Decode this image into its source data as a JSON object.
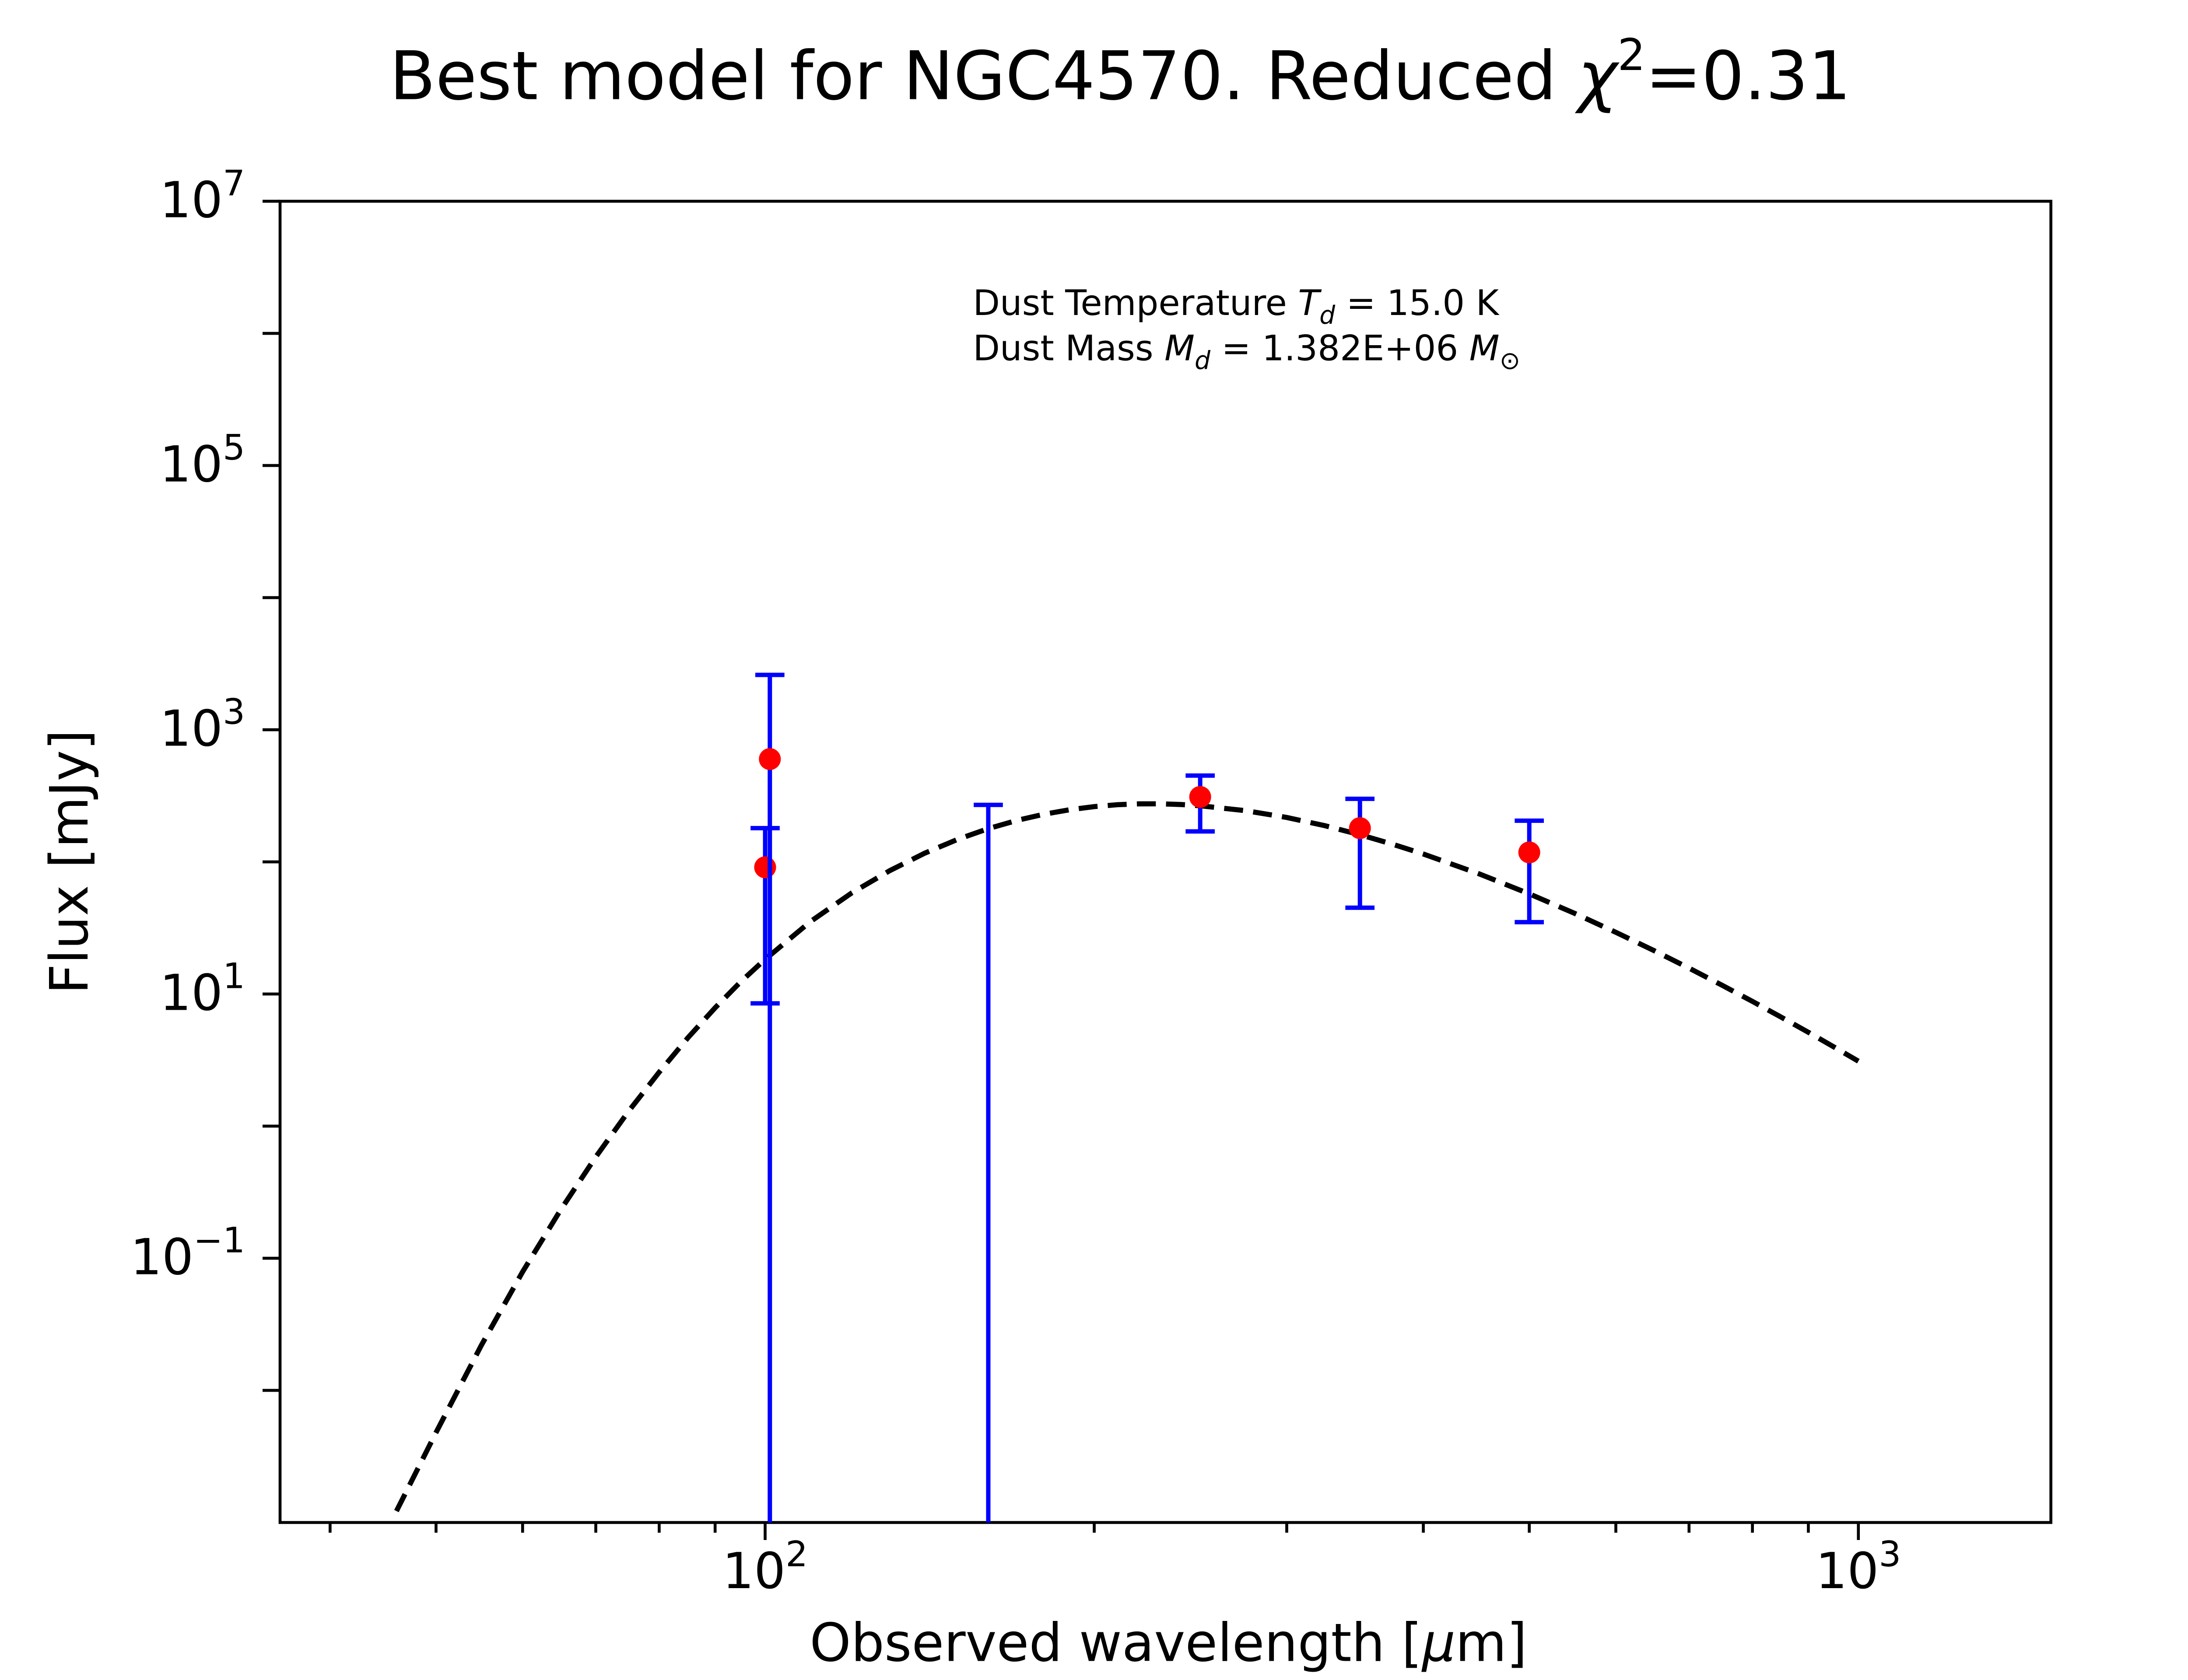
{
  "chart_data": {
    "type": "scatter",
    "title": {
      "main": "Best model for NGC4570. Reduced ",
      "chi": "χ",
      "sup": "2",
      "value": "=0.31"
    },
    "xlabel": {
      "main": "Observed wavelength [",
      "mu": "μ",
      "unit": "m]"
    },
    "ylabel": "Flux [mJy]",
    "xscale": "log",
    "yscale": "log",
    "xlim": [
      36,
      1500
    ],
    "ylim": [
      0.001,
      10000000
    ],
    "x_ticks": [
      {
        "value": 100,
        "base": "10",
        "exp": "2"
      },
      {
        "value": 1000,
        "base": "10",
        "exp": "3"
      }
    ],
    "y_ticks": [
      {
        "value": 0.1,
        "base": "10",
        "exp": "−1"
      },
      {
        "value": 10,
        "base": "10",
        "exp": "1"
      },
      {
        "value": 1000,
        "base": "10",
        "exp": "3"
      },
      {
        "value": 100000,
        "base": "10",
        "exp": "5"
      },
      {
        "value": 10000000,
        "base": "10",
        "exp": "7"
      }
    ],
    "grid": false,
    "annotation": {
      "line1_prefix": "Dust Temperature ",
      "line1_sym": "T",
      "line1_sub": "d",
      "line1_suffix": " = 15.0 K",
      "line2_prefix": "Dust Mass ",
      "line2_sym": "M",
      "line2_sub": "d",
      "line2_mid": " = 1.382E+06 ",
      "line2_sym2": "M",
      "line2_sub2": "⊙"
    },
    "model_curve": {
      "style": "dashed",
      "color": "#000000",
      "x": [
        46,
        50,
        55,
        60,
        65,
        70,
        75,
        80,
        85,
        90,
        95,
        100,
        110,
        120,
        130,
        140,
        150,
        160,
        170,
        180,
        190,
        200,
        210,
        220,
        230,
        240,
        250,
        275,
        300,
        325,
        350,
        375,
        400,
        450,
        500,
        550,
        600,
        650,
        700,
        750,
        800,
        850,
        900,
        950,
        1000
      ],
      "y": [
        0.00122,
        0.0048,
        0.0219,
        0.0789,
        0.232,
        0.585,
        1.295,
        2.56,
        4.67,
        7.86,
        12.4,
        18.3,
        35.3,
        58.2,
        85.8,
        116.5,
        148.0,
        178.5,
        206.1,
        229.6,
        248.3,
        262.0,
        270.8,
        274.9,
        275.0,
        271.8,
        265.9,
        244.2,
        216.8,
        188.0,
        160.6,
        136.0,
        114.7,
        81.1,
        57.3,
        40.8,
        29.3,
        21.33,
        15.7,
        11.68,
        8.79,
        6.68,
        5.13,
        3.97,
        3.1
      ]
    },
    "observations": {
      "marker_color": "#ff0000",
      "errorbar_color": "#0000ff",
      "points": [
        {
          "x": 100,
          "y": 91,
          "y_low": 8.5,
          "y_high": 180
        },
        {
          "x": 101,
          "y": 600,
          "y_low": 0.001,
          "y_high": 2600
        },
        {
          "x": 160,
          "y": null,
          "y_low": 0.001,
          "y_high": 270
        },
        {
          "x": 250,
          "y": 310,
          "y_low": 170,
          "y_high": 450
        },
        {
          "x": 350,
          "y": 180,
          "y_low": 45,
          "y_high": 300
        },
        {
          "x": 500,
          "y": 118,
          "y_low": 35,
          "y_high": 205
        }
      ]
    }
  }
}
